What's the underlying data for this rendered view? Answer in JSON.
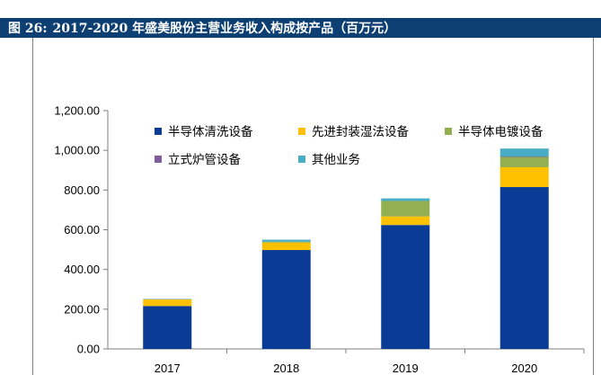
{
  "figure": {
    "label": "图 26:",
    "title": "2017-2020 年盛美股份主营业务收入构成按产品（百万元）"
  },
  "chart_data": {
    "type": "bar",
    "stacked": true,
    "categories": [
      "2017",
      "2018",
      "2019",
      "2020"
    ],
    "series": [
      {
        "name": "半导体清洗设备",
        "color": "#0a3c96",
        "values": [
          216,
          498,
          624,
          815
        ]
      },
      {
        "name": "先进封装湿法设备",
        "color": "#ffc000",
        "values": [
          34,
          37,
          43,
          100
        ]
      },
      {
        "name": "半导体电镀设备",
        "color": "#92b050",
        "values": [
          0,
          5,
          78,
          52
        ]
      },
      {
        "name": "立式炉管设备",
        "color": "#7d5d9e",
        "values": [
          0,
          0,
          0,
          2
        ]
      },
      {
        "name": "其他业务",
        "color": "#4bacc6",
        "values": [
          2,
          10,
          13,
          40
        ]
      }
    ],
    "yticks": [
      "0.00",
      "200.00",
      "400.00",
      "600.00",
      "800.00",
      "1,000.00",
      "1,200.00"
    ],
    "ylim": [
      0,
      1200
    ],
    "legend_position": "top-left inside plot",
    "grid": false
  }
}
